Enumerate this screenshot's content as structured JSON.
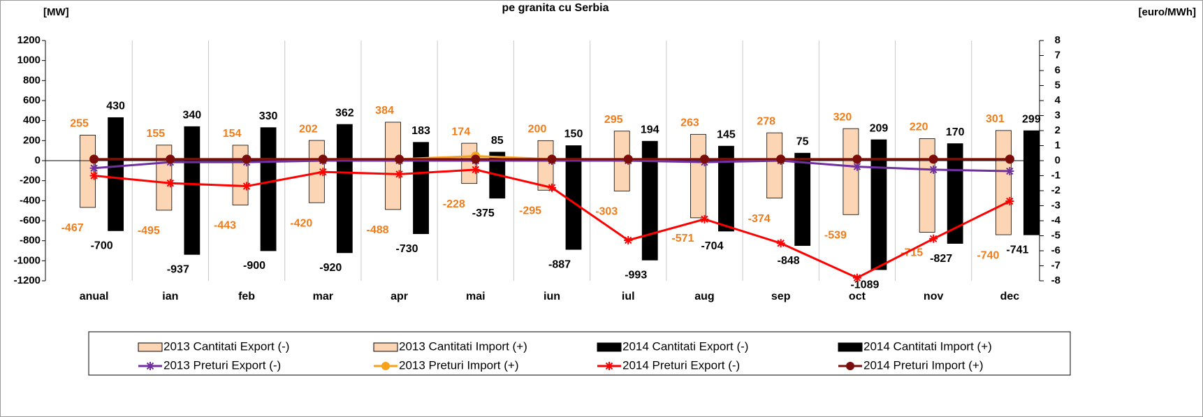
{
  "chart_data": {
    "type": "bar",
    "title": "pe granita cu Serbia",
    "y_label": "[MW]",
    "y2_label": "[euro/MWh]",
    "categories": [
      "anual",
      "ian",
      "feb",
      "mar",
      "apr",
      "mai",
      "iun",
      "iul",
      "aug",
      "sep",
      "oct",
      "nov",
      "dec"
    ],
    "ylim": [
      -1200,
      1200
    ],
    "yticks": [
      -1200,
      -1000,
      -800,
      -600,
      -400,
      -200,
      0,
      200,
      400,
      600,
      800,
      1000,
      1200
    ],
    "y2lim": [
      -8,
      8
    ],
    "y2ticks": [
      -8,
      -7,
      -6,
      -5,
      -4,
      -3,
      -2,
      -1,
      0,
      1,
      2,
      3,
      4,
      5,
      6,
      7,
      8
    ],
    "grid": true,
    "legend": "bottom",
    "series": [
      {
        "name": "2013 Cantitati Export (-)",
        "type": "bar",
        "color": "#fcd5b4",
        "values": [
          -467,
          -495,
          -443,
          -420,
          -488,
          -228,
          -295,
          -303,
          -571,
          -374,
          -539,
          -715,
          -740
        ]
      },
      {
        "name": "2013 Cantitati Import (+)",
        "type": "bar",
        "color": "#fcd5b4",
        "values": [
          255,
          155,
          154,
          202,
          384,
          174,
          200,
          295,
          263,
          278,
          320,
          220,
          301
        ]
      },
      {
        "name": "2014 Cantitati Export (-)",
        "type": "bar",
        "color": "#000000",
        "values": [
          -700,
          -937,
          -900,
          -920,
          -730,
          -375,
          -887,
          -993,
          -704,
          -848,
          -1089,
          -827,
          -741
        ]
      },
      {
        "name": "2014 Cantitati Import (+)",
        "type": "bar",
        "color": "#000000",
        "values": [
          430,
          340,
          330,
          362,
          183,
          85,
          150,
          194,
          145,
          75,
          209,
          170,
          299
        ]
      },
      {
        "name": "2013 Preturi Export (-)",
        "type": "line",
        "axis": "y2",
        "marker": "star",
        "color": "#7030a0",
        "values": [
          -0.5,
          -0.1,
          -0.1,
          0,
          0,
          0,
          0,
          0,
          -0.1,
          0,
          -0.4,
          -0.6,
          -0.7
        ]
      },
      {
        "name": "2013 Preturi Import (+)",
        "type": "line",
        "axis": "y2",
        "marker": "circle",
        "color": "#f7a21b",
        "values": [
          0.1,
          0.1,
          0.1,
          0.1,
          0.1,
          0.3,
          0.1,
          0.1,
          0.1,
          0.1,
          0.1,
          0.1,
          0.1
        ]
      },
      {
        "name": "2014 Preturi Export (-)",
        "type": "line",
        "axis": "y2",
        "marker": "star",
        "color": "#ff0000",
        "values": [
          -1.0,
          -1.5,
          -1.7,
          -0.75,
          -0.9,
          -0.6,
          -1.8,
          -5.3,
          -3.9,
          -5.5,
          -7.8,
          -5.2,
          -2.7
        ]
      },
      {
        "name": "2014 Preturi Import (+)",
        "type": "line",
        "axis": "y2",
        "marker": "circle",
        "color": "#7b0c0c",
        "values": [
          0.1,
          0.1,
          0.1,
          0.1,
          0.1,
          0.1,
          0.1,
          0.1,
          0.1,
          0.1,
          0.1,
          0.1,
          0.1
        ]
      }
    ]
  }
}
